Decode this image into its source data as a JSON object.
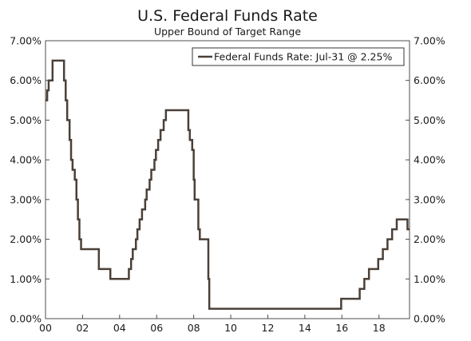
{
  "chart_data": {
    "type": "line",
    "title": "U.S. Federal Funds Rate",
    "subtitle": "Upper Bound of Target Range",
    "xlabel": "",
    "ylabel": "",
    "xlim": [
      2000.0,
      2019.65
    ],
    "ylim": [
      0,
      7
    ],
    "x_ticks": [
      2000,
      2002,
      2004,
      2006,
      2008,
      2010,
      2012,
      2014,
      2016,
      2018
    ],
    "x_tick_labels": [
      "00",
      "02",
      "04",
      "06",
      "08",
      "10",
      "12",
      "14",
      "16",
      "18"
    ],
    "y_ticks": [
      0,
      1,
      2,
      3,
      4,
      5,
      6,
      7
    ],
    "y_tick_labels": [
      "0.00%",
      "1.00%",
      "2.00%",
      "3.00%",
      "4.00%",
      "5.00%",
      "6.00%",
      "7.00%"
    ],
    "grid": false,
    "legend_position": "top-right",
    "series": [
      {
        "name": "Federal Funds Rate: Jul-31 @ 2.25%",
        "color": "#4a4038",
        "step": true,
        "x": [
          2000.0,
          2000.09,
          2000.17,
          2000.38,
          2000.46,
          2001.0,
          2001.09,
          2001.17,
          2001.3,
          2001.38,
          2001.46,
          2001.58,
          2001.67,
          2001.75,
          2001.83,
          2001.92,
          2001.97,
          2002.88,
          2003.5,
          2004.5,
          2004.62,
          2004.71,
          2004.88,
          2004.96,
          2005.08,
          2005.21,
          2005.38,
          2005.46,
          2005.62,
          2005.71,
          2005.88,
          2005.96,
          2006.08,
          2006.21,
          2006.38,
          2006.5,
          2007.71,
          2007.79,
          2007.92,
          2008.0,
          2008.05,
          2008.25,
          2008.33,
          2008.79,
          2008.84,
          2008.96,
          2015.96,
          2016.96,
          2017.21,
          2017.46,
          2017.96,
          2018.21,
          2018.46,
          2018.71,
          2018.96,
          2019.54,
          2019.65
        ],
        "values": [
          5.5,
          5.75,
          6.0,
          6.5,
          6.5,
          6.0,
          5.5,
          5.0,
          4.5,
          4.0,
          3.75,
          3.5,
          3.0,
          2.5,
          2.0,
          1.75,
          1.75,
          1.25,
          1.0,
          1.25,
          1.5,
          1.75,
          2.0,
          2.25,
          2.5,
          2.75,
          3.0,
          3.25,
          3.5,
          3.75,
          4.0,
          4.25,
          4.5,
          4.75,
          5.0,
          5.25,
          4.75,
          4.5,
          4.25,
          3.5,
          3.0,
          2.25,
          2.0,
          1.0,
          0.25,
          0.25,
          0.5,
          0.75,
          1.0,
          1.25,
          1.5,
          1.75,
          2.0,
          2.25,
          2.5,
          2.25,
          2.25
        ]
      }
    ]
  }
}
